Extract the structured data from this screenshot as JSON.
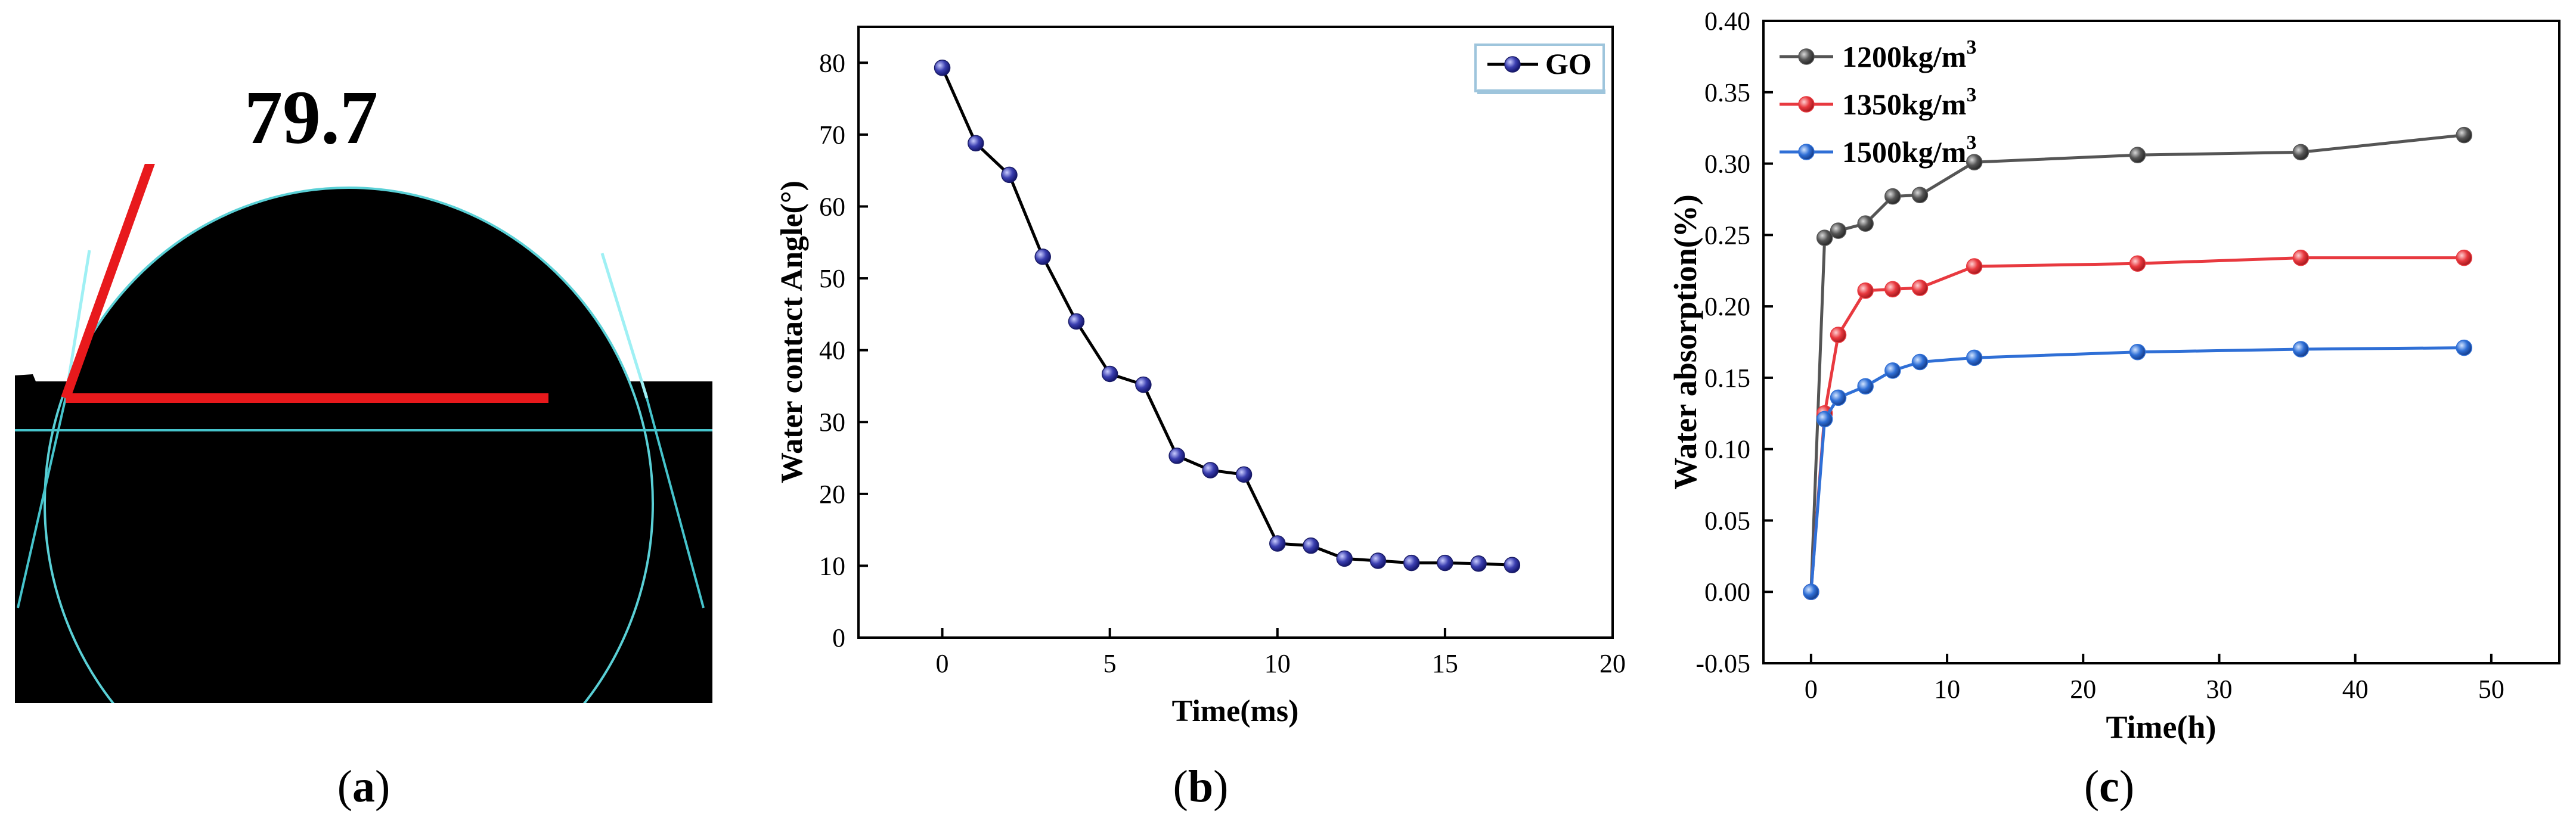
{
  "panels": {
    "a": {
      "caption": "a",
      "angle_label": "79.7"
    },
    "b": {
      "caption": "b"
    },
    "c": {
      "caption": "c"
    }
  },
  "chart_data": [
    {
      "type": "line",
      "panel": "b",
      "title": "",
      "xlabel": "Time(ms)",
      "ylabel": "Water contact Angle(°)",
      "xlim": [
        -2.5,
        20
      ],
      "ylim": [
        0,
        85
      ],
      "xticks": [
        0,
        5,
        10,
        15,
        20
      ],
      "yticks": [
        0,
        10,
        20,
        30,
        40,
        50,
        60,
        70,
        80
      ],
      "legend_position": "top-right",
      "series": [
        {
          "name": "GO",
          "color": "#2b2d9c",
          "x": [
            0,
            1,
            2,
            3,
            4,
            5,
            6,
            7,
            8,
            9,
            10,
            11,
            12,
            13,
            14,
            15,
            16,
            17
          ],
          "y": [
            79.3,
            68.8,
            64.4,
            53.0,
            44.0,
            36.7,
            35.2,
            25.3,
            23.3,
            22.7,
            13.1,
            12.8,
            11.0,
            10.7,
            10.4,
            10.4,
            10.3,
            10.1
          ]
        }
      ]
    },
    {
      "type": "line",
      "panel": "c",
      "title": "",
      "xlabel": "Time(h)",
      "ylabel": "Water absorption(%)",
      "xlim": [
        -3.5,
        55
      ],
      "ylim": [
        -0.05,
        0.4
      ],
      "xticks": [
        0,
        10,
        20,
        30,
        40,
        50
      ],
      "yticks": [
        -0.05,
        0.0,
        0.05,
        0.1,
        0.15,
        0.2,
        0.25,
        0.3,
        0.35,
        0.4
      ],
      "ytick_labels": [
        "-0.05",
        "0.00",
        "0.05",
        "0.10",
        "0.15",
        "0.20",
        "0.25",
        "0.30",
        "0.35",
        "0.40"
      ],
      "legend_position": "top-left",
      "series": [
        {
          "name": "1200kg/m",
          "sup": "3",
          "color": "#555555",
          "x": [
            0,
            1,
            2,
            4,
            6,
            8,
            12,
            24,
            36,
            48
          ],
          "y": [
            0.0,
            0.248,
            0.253,
            0.258,
            0.277,
            0.278,
            0.301,
            0.306,
            0.308,
            0.32
          ]
        },
        {
          "name": "1350kg/m",
          "sup": "3",
          "color": "#e8393f",
          "x": [
            0,
            1,
            2,
            4,
            6,
            8,
            12,
            24,
            36,
            48
          ],
          "y": [
            0.0,
            0.125,
            0.18,
            0.211,
            0.212,
            0.213,
            0.228,
            0.23,
            0.234,
            0.234
          ]
        },
        {
          "name": "1500kg/m",
          "sup": "3",
          "color": "#2f6fd6",
          "x": [
            0,
            1,
            2,
            4,
            6,
            8,
            12,
            24,
            36,
            48
          ],
          "y": [
            0.0,
            0.121,
            0.136,
            0.144,
            0.155,
            0.161,
            0.164,
            0.168,
            0.17,
            0.171
          ]
        }
      ]
    }
  ]
}
